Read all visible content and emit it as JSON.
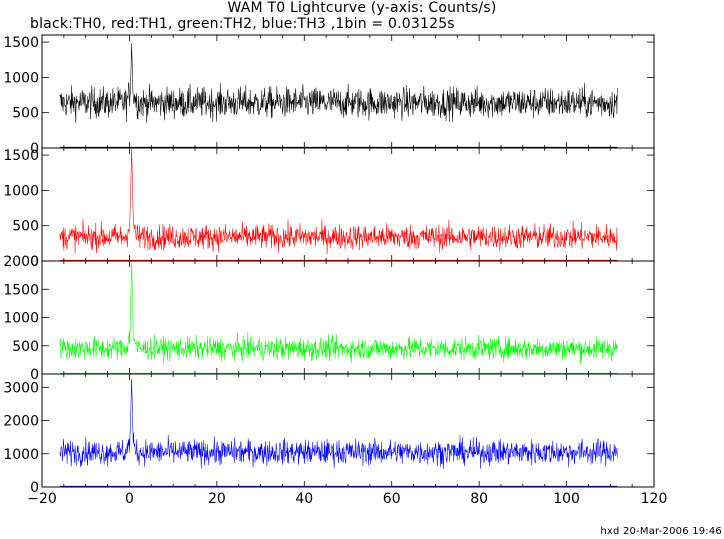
{
  "chart_data": {
    "type": "line",
    "title": "WAM T0 Lightcurve (y-axis: Counts/s)",
    "subtitle": "black:TH0, red:TH1, green:TH2, blue:TH3 ,1bin = 0.03125s",
    "footer": "hxd 20-Mar-2006 19:46",
    "x_axis": {
      "range": [
        -20,
        120
      ],
      "ticks": [
        -20,
        0,
        20,
        40,
        60,
        80,
        100,
        120
      ],
      "tick_labels": [
        "−20",
        "0",
        "20",
        "40",
        "60",
        "80",
        "100",
        "120"
      ]
    },
    "data_x_range": [
      -15.9,
      111.6
    ],
    "panels": [
      {
        "name": "TH0",
        "color": "#000000",
        "ylim": [
          0,
          1600
        ],
        "yticks": [
          0,
          500,
          1000,
          1500
        ],
        "ytick_labels": [
          "0",
          "500",
          "1000",
          "1500"
        ],
        "baseline_mean": 640,
        "noise_sd": 110,
        "spike": {
          "x": 0.5,
          "peak": 1500
        }
      },
      {
        "name": "TH1",
        "color": "#ff0000",
        "ylim": [
          0,
          1600
        ],
        "yticks": [
          0,
          500,
          1000,
          1500
        ],
        "ytick_labels": [
          "0",
          "500",
          "1000",
          "1500"
        ],
        "baseline_mean": 340,
        "noise_sd": 90,
        "spike": {
          "x": 0.5,
          "peak": 1600
        }
      },
      {
        "name": "TH2",
        "color": "#00ff00",
        "ylim": [
          0,
          2000
        ],
        "yticks": [
          0,
          500,
          1000,
          1500,
          2000
        ],
        "ytick_labels": [
          "0",
          "500",
          "1000",
          "1500",
          "2000"
        ],
        "baseline_mean": 450,
        "noise_sd": 100,
        "spike": {
          "x": 0.5,
          "peak": 2000
        }
      },
      {
        "name": "TH3",
        "color": "#0000ff",
        "ylim": [
          0,
          3400
        ],
        "yticks": [
          0,
          1000,
          2000,
          3000
        ],
        "ytick_labels": [
          "0",
          "1000",
          "2000",
          "3000"
        ],
        "baseline_mean": 1050,
        "noise_sd": 190,
        "spike": {
          "x": 0.5,
          "peak": 3300
        }
      }
    ],
    "grid": false,
    "legend": "none"
  }
}
